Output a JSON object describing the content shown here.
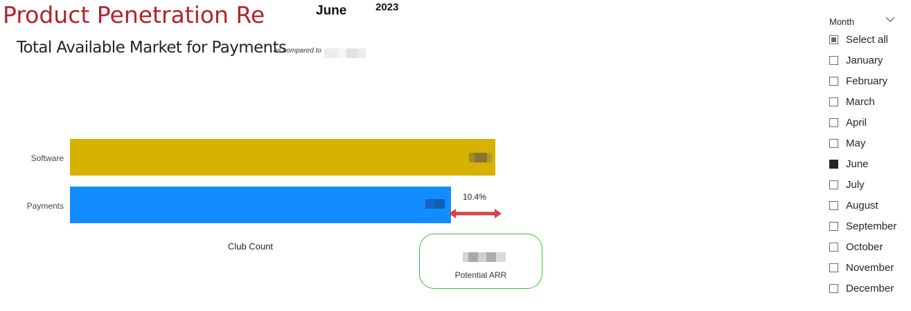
{
  "report": {
    "title": "Product Penetration Report",
    "selected_month": "June",
    "selected_year": "2023"
  },
  "visual": {
    "title": "Total Available Market for Payments",
    "comparison_caption": "as compared to"
  },
  "chart_data": {
    "type": "bar",
    "orientation": "horizontal",
    "categories": [
      "Software",
      "Payments"
    ],
    "colors": [
      "#d8b200",
      "#118dff"
    ],
    "relative_values": [
      1.0,
      0.896
    ],
    "xlabel": "Club Count",
    "gap_label": "10.4%",
    "value_labels_redacted": true
  },
  "kpi_card": {
    "label": "Potential ARR",
    "value_redacted": true,
    "border_color": "#3dbb3d"
  },
  "arrow_color": "#d9414b",
  "slicer": {
    "title": "Month",
    "items": [
      {
        "label": "Select all",
        "state": "partial"
      },
      {
        "label": "January",
        "state": "unchecked"
      },
      {
        "label": "February",
        "state": "unchecked"
      },
      {
        "label": "March",
        "state": "unchecked"
      },
      {
        "label": "April",
        "state": "unchecked"
      },
      {
        "label": "May",
        "state": "unchecked"
      },
      {
        "label": "June",
        "state": "checked"
      },
      {
        "label": "July",
        "state": "unchecked"
      },
      {
        "label": "August",
        "state": "unchecked"
      },
      {
        "label": "September",
        "state": "unchecked"
      },
      {
        "label": "October",
        "state": "unchecked"
      },
      {
        "label": "November",
        "state": "unchecked"
      },
      {
        "label": "December",
        "state": "unchecked"
      }
    ]
  }
}
